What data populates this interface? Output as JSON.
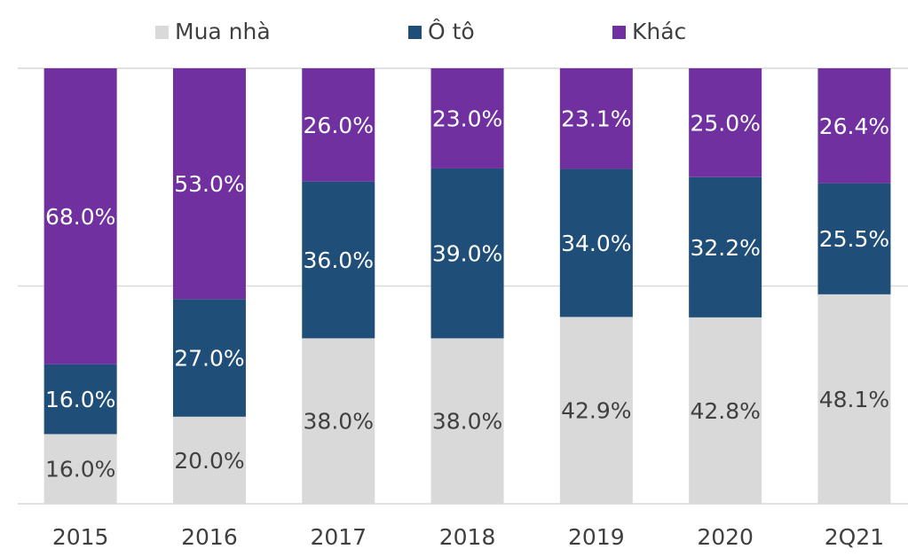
{
  "chart_data": {
    "type": "stacked_bar",
    "categories": [
      "2015",
      "2016",
      "2017",
      "2018",
      "2019",
      "2020",
      "2Q21"
    ],
    "series": [
      {
        "name": "Mua nhà",
        "color": "#d9d9d9",
        "values": [
          16,
          20,
          38,
          38,
          42.9,
          42.8,
          48.1
        ],
        "value_labels": [
          "16.0%",
          "20.0%",
          "38.0%",
          "38.0%",
          "42.9%",
          "42.8%",
          "48.1%"
        ]
      },
      {
        "name": "Ô tô",
        "color": "#1f4e79",
        "values": [
          16,
          27,
          36,
          39,
          34,
          32.2,
          25.5
        ],
        "value_labels": [
          "16.0%",
          "27.0%",
          "36.0%",
          "39.0%",
          "34.0%",
          "32.2%",
          "25.5%"
        ]
      },
      {
        "name": "Khác",
        "color": "#7030a0",
        "values": [
          68,
          53,
          26,
          23,
          23.1,
          25,
          26.4
        ],
        "value_labels": [
          "68.0%",
          "53.0%",
          "26.0%",
          "23.0%",
          "23.1%",
          "25.0%",
          "26.4%"
        ]
      }
    ],
    "ylim": [
      0,
      100
    ],
    "yticks": [
      0,
      50,
      100
    ],
    "grid": true,
    "legend": "top"
  }
}
